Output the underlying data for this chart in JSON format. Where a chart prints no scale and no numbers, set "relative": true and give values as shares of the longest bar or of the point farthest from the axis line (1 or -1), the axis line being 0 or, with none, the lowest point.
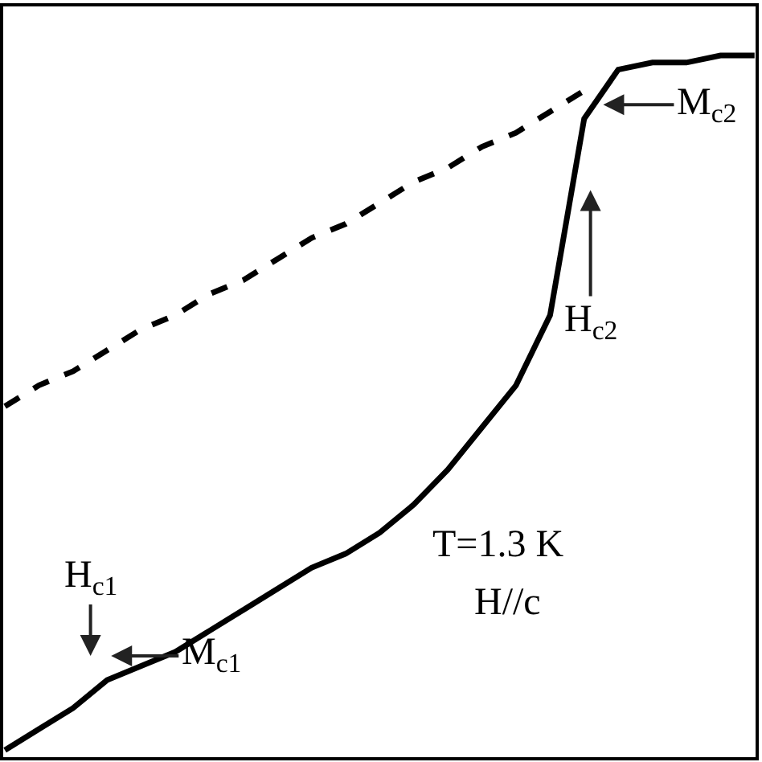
{
  "chart_data": {
    "type": "line",
    "relative": true,
    "categories": [
      null,
      null,
      null,
      null,
      null,
      null,
      null,
      null,
      null,
      null,
      null,
      null,
      null,
      null,
      null,
      null,
      null,
      null,
      null,
      null,
      null,
      null,
      null
    ],
    "series": [
      {
        "color": "#000000",
        "line_style": "solid",
        "values": [
          0.01,
          0.04,
          0.07,
          0.11,
          0.13,
          0.15,
          0.18,
          0.21,
          0.24,
          0.27,
          0.29,
          0.32,
          0.36,
          0.41,
          0.47,
          0.53,
          0.63,
          0.91,
          0.98,
          0.99,
          0.99,
          1.0,
          1.0
        ]
      },
      {
        "color": "#000000",
        "line_style": "dashed",
        "values": [
          0.5,
          0.53,
          0.55,
          0.58,
          0.61,
          0.63,
          0.66,
          0.68,
          0.71,
          0.74,
          0.76,
          0.79,
          0.82,
          0.84,
          0.87,
          0.89,
          0.92,
          0.95,
          null,
          null,
          null,
          null,
          null
        ]
      }
    ],
    "annotations": [
      "H$_{c1}$",
      "M$_{c1}$",
      "H$_{c2}$",
      "M$_{c2}$",
      "T=1.3 K",
      "H//c"
    ],
    "marker": "none"
  }
}
